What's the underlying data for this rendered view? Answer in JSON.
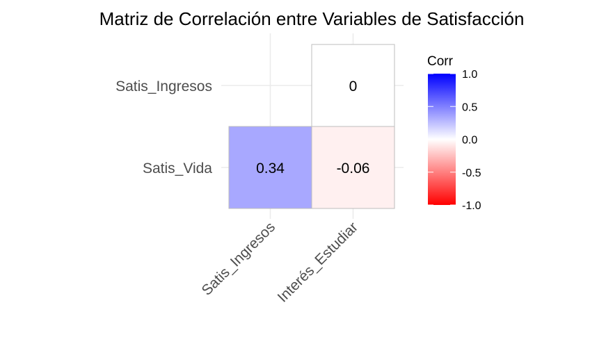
{
  "chart_data": {
    "type": "heatmap",
    "title": "Matriz de Correlación entre Variables de Satisfacción",
    "x_categories": [
      "Satis_Ingresos",
      "Interés_Estudiar"
    ],
    "y_categories": [
      "Satis_Vida",
      "Satis_Ingresos"
    ],
    "cells": [
      {
        "x": "Satis_Ingresos",
        "y": "Satis_Vida",
        "value": 0.34,
        "label": "0.34"
      },
      {
        "x": "Interés_Estudiar",
        "y": "Satis_Vida",
        "value": -0.06,
        "label": "-0.06"
      },
      {
        "x": "Interés_Estudiar",
        "y": "Satis_Ingresos",
        "value": 0,
        "label": "0"
      }
    ],
    "legend": {
      "title": "Corr",
      "placement": "right",
      "limits": [
        -1,
        1
      ],
      "ticks": [
        "1.0",
        "0.5",
        "0.0",
        "-0.5",
        "-1.0"
      ],
      "tick_values": [
        1,
        0.5,
        0,
        -0.5,
        -1
      ],
      "colors": {
        "high": "#0000ff",
        "mid": "#ffffff",
        "low": "#ff0000"
      }
    },
    "grid": true
  }
}
